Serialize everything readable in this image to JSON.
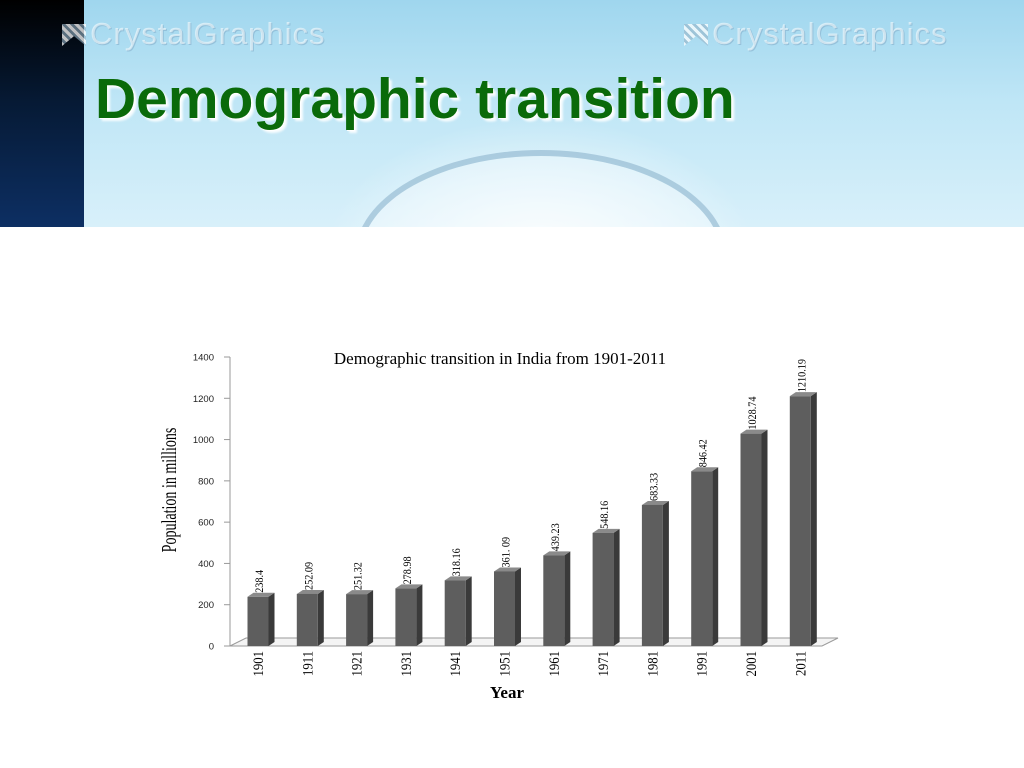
{
  "slide": {
    "title": "Demographic transition",
    "watermark": "CrystalGraphics"
  },
  "chart_data": {
    "type": "bar",
    "title": "Demographic transition in India from 1901-2011",
    "xlabel": "Year",
    "ylabel": "Population in millions",
    "categories": [
      "1901",
      "1911",
      "1921",
      "1931",
      "1941",
      "1951",
      "1961",
      "1971",
      "1981",
      "1991",
      "2001",
      "2011"
    ],
    "values": [
      238.4,
      252.09,
      251.32,
      278.98,
      318.16,
      361.09,
      439.23,
      548.16,
      683.33,
      846.42,
      1028.74,
      1210.19
    ],
    "value_labels": [
      "238.4",
      "252.09",
      "251.32",
      "278.98",
      "318.16",
      "361. 09",
      "439.23",
      "548.16",
      "683.33",
      "846.42",
      "1028.74",
      "1210.19"
    ],
    "ylim": [
      0,
      1400
    ],
    "yticks": [
      "0",
      "200",
      "400",
      "600",
      "800",
      "1000",
      "1200",
      "1400"
    ],
    "grid": false,
    "legend": "none",
    "bar_color": "#5e5e5e"
  }
}
